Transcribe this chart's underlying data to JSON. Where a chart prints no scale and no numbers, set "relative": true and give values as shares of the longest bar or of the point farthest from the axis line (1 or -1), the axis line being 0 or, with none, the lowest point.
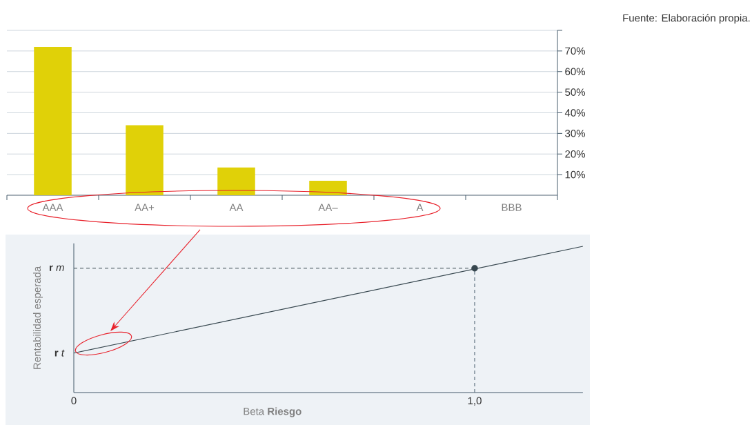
{
  "chart_data": [
    {
      "type": "bar",
      "categories": [
        "AAA",
        "AA+",
        "AA",
        "AA–",
        "A",
        "BBB"
      ],
      "values": [
        72,
        34,
        13.5,
        7,
        0,
        0
      ],
      "color": "#e0d108",
      "ylim": [
        0,
        80
      ],
      "yticks": [
        {
          "value": 10,
          "label": "10%"
        },
        {
          "value": 20,
          "label": "20%"
        },
        {
          "value": 30,
          "label": "30%"
        },
        {
          "value": 40,
          "label": "40%"
        },
        {
          "value": 50,
          "label": "50%"
        },
        {
          "value": 60,
          "label": "60%"
        },
        {
          "value": 70,
          "label": "70%"
        },
        {
          "value": 80,
          "label": null
        }
      ],
      "grid": "y",
      "annotations": [
        "Fuente: Elaboración propia."
      ]
    },
    {
      "type": "line",
      "relative": true,
      "xlabel": "Beta **Riesgo**",
      "ylabel": "Rentabilidad esperada",
      "series": [
        {
          "type": "line",
          "color": "#37474f",
          "x": [
            0,
            1.27
          ],
          "values": [
            0.27,
            1.0
          ]
        },
        {
          "type": "scatter",
          "color": "#37474f",
          "x": [
            1.0
          ],
          "values": [
            0.85
          ]
        }
      ],
      "xlim": [
        0,
        1.27
      ],
      "xticks": [
        0,
        {
          "value": 1,
          "label": "1,0"
        }
      ],
      "ref_lines": [
        {
          "axis": "y",
          "value": 0.85,
          "label": "**r** *m*",
          "line_style": "dashed"
        },
        {
          "axis": "x",
          "value": 1,
          "line_style": "dashed"
        }
      ],
      "annotations": [
        {
          "text": "**r** *t*",
          "x": 0,
          "y": 0.27
        }
      ]
    }
  ]
}
